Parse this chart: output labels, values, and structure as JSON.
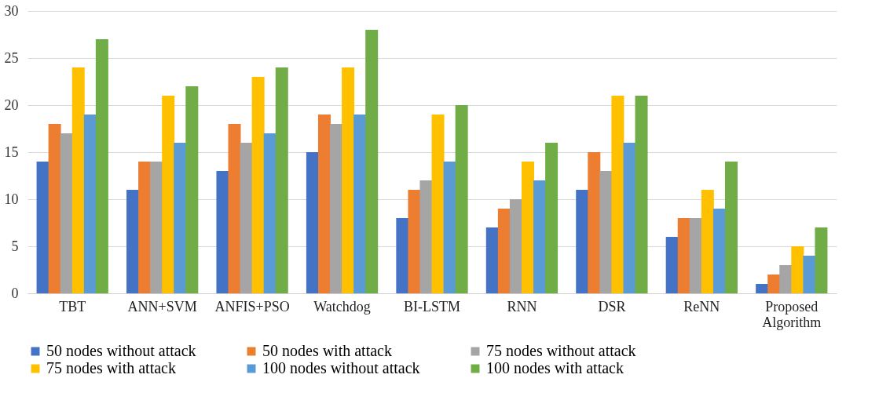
{
  "chart_data": {
    "type": "bar",
    "categories": [
      "TBT",
      "ANN+SVM",
      "ANFIS+PSO",
      "Watchdog",
      "BI-LSTM",
      "RNN",
      "DSR",
      "ReNN",
      "Proposed Algorithm"
    ],
    "series": [
      {
        "name": "50 nodes without attack",
        "color": "#4472c4",
        "values": [
          14,
          11,
          13,
          15,
          8,
          7,
          11,
          6,
          1
        ]
      },
      {
        "name": "50 nodes with attack",
        "color": "#ed7d31",
        "values": [
          18,
          14,
          18,
          19,
          11,
          9,
          15,
          8,
          2
        ]
      },
      {
        "name": "75 nodes without attack",
        "color": "#a5a5a5",
        "values": [
          17,
          14,
          16,
          18,
          12,
          10,
          13,
          8,
          3
        ]
      },
      {
        "name": "75 nodes with attack",
        "color": "#ffc000",
        "values": [
          24,
          21,
          23,
          24,
          19,
          14,
          21,
          11,
          5
        ]
      },
      {
        "name": "100 nodes without attack",
        "color": "#5b9bd5",
        "values": [
          19,
          16,
          17,
          19,
          14,
          12,
          16,
          9,
          4
        ]
      },
      {
        "name": "100 nodes with attack",
        "color": "#70ad47",
        "values": [
          27,
          22,
          24,
          28,
          20,
          16,
          21,
          14,
          7
        ]
      }
    ],
    "ylim": [
      0,
      30
    ],
    "yticks": [
      0,
      5,
      10,
      15,
      20,
      25,
      30
    ],
    "grid": "y",
    "legend": "bottom"
  }
}
